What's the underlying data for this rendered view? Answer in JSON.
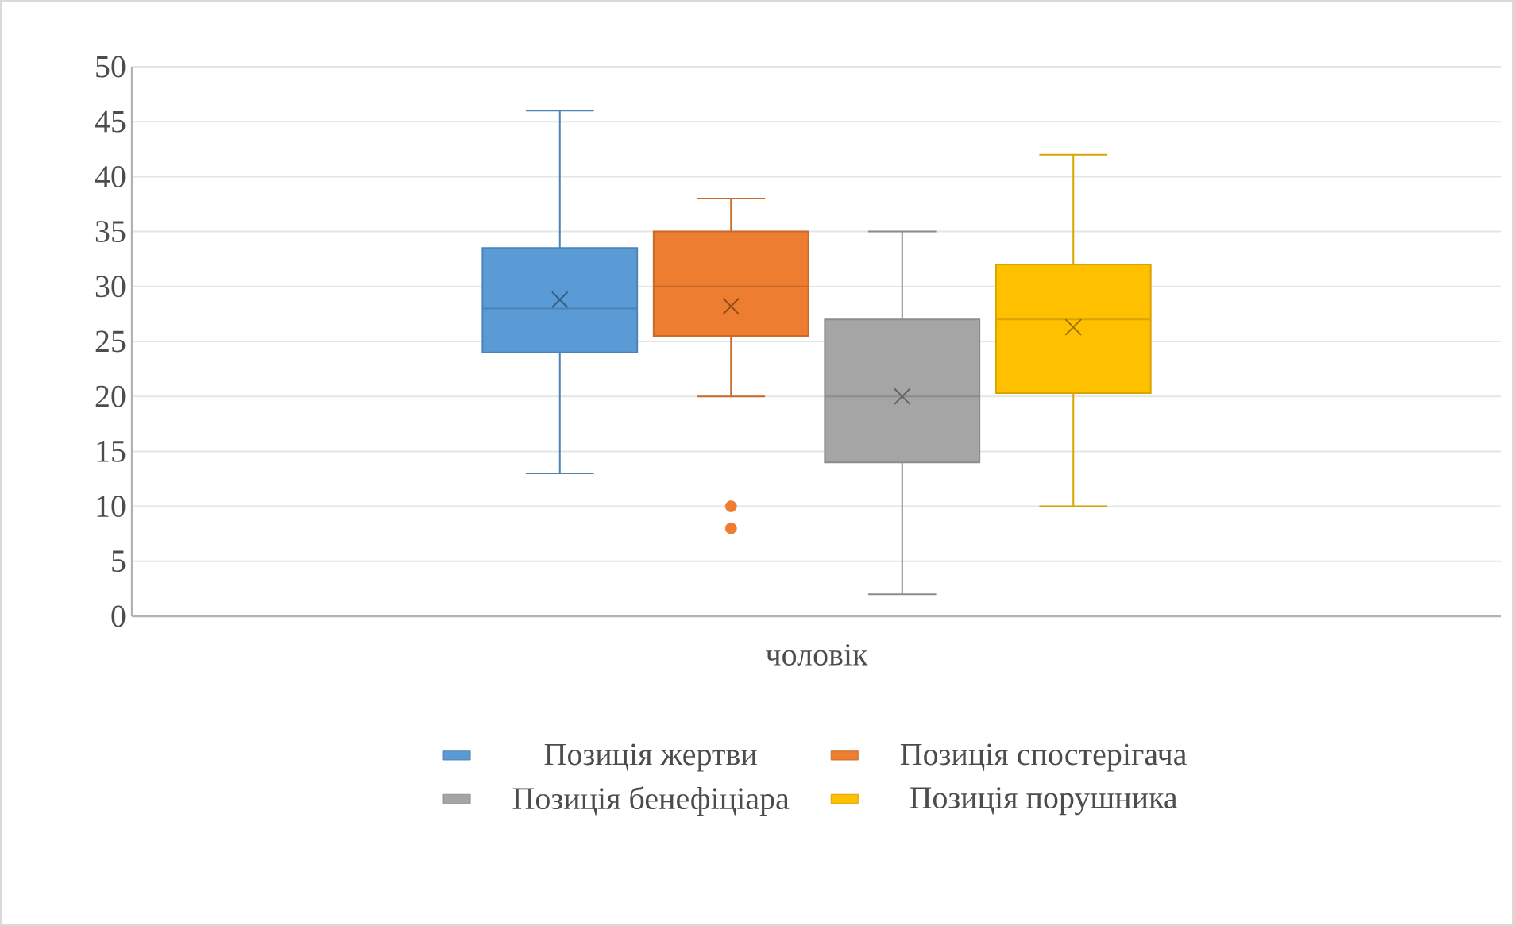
{
  "chart_data": {
    "type": "box",
    "categories": [
      "чоловік"
    ],
    "series": [
      {
        "name": "Позиція жертви",
        "color": "#5b9bd5",
        "boxes": [
          {
            "low": 13,
            "q1": 24,
            "median": 28,
            "q3": 33.5,
            "high": 46,
            "mean": 28.8
          }
        ]
      },
      {
        "name": "Позиція спостерігача",
        "color": "#ed7d31",
        "boxes": [
          {
            "low": 20,
            "q1": 25.5,
            "median": 30,
            "q3": 35,
            "high": 38,
            "mean": 28.2,
            "outliers": [
              10,
              8
            ]
          }
        ]
      },
      {
        "name": "Позиція бенефіціара",
        "color": "#a5a5a5",
        "boxes": [
          {
            "low": 2,
            "q1": 14,
            "median": 20,
            "q3": 27,
            "high": 35,
            "mean": 20
          }
        ]
      },
      {
        "name": "Позиція порушника",
        "color": "#ffc000",
        "boxes": [
          {
            "low": 10,
            "q1": 20.3,
            "median": 27,
            "q3": 32,
            "high": 42,
            "mean": 26.3
          }
        ]
      }
    ],
    "ylim": [
      0,
      50
    ],
    "yticks": [
      0,
      5,
      10,
      15,
      20,
      25,
      30,
      35,
      40,
      45,
      50
    ],
    "grid": "y",
    "legend": "bottom"
  }
}
